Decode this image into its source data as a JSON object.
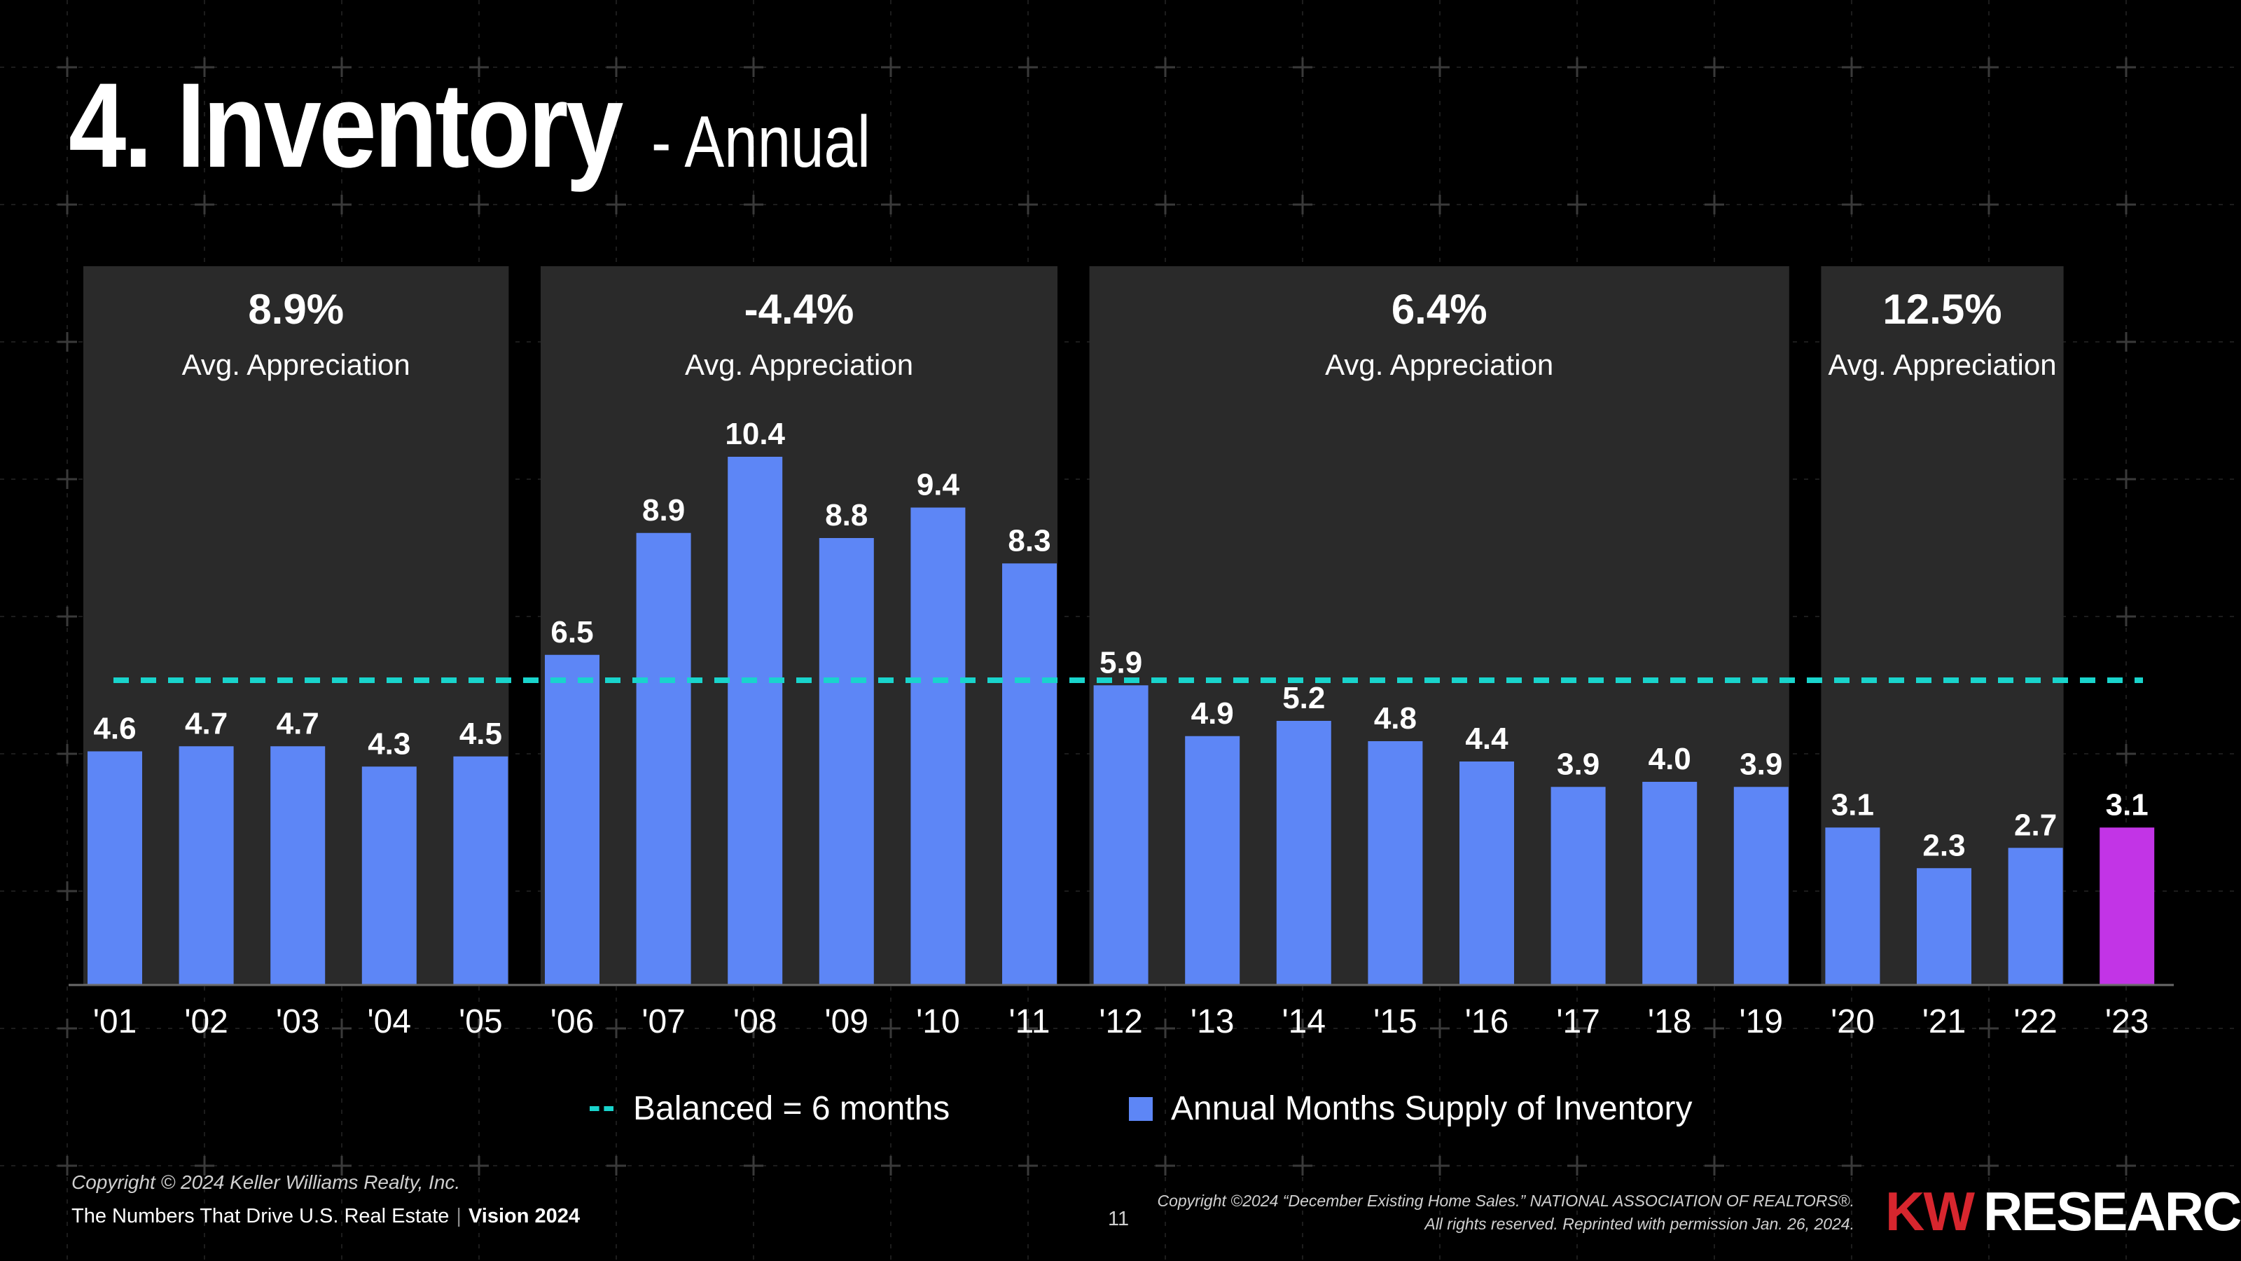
{
  "title": {
    "main": "4. Inventory",
    "sub": "- Annual"
  },
  "colors": {
    "background": "#000000",
    "panel": "#2a2a2a",
    "bar": "#5d86f6",
    "highlight": "#c234e6",
    "balanced_line": "#19d4cc",
    "brand_red": "#d7262e"
  },
  "chart_data": {
    "type": "bar",
    "categories": [
      "'01",
      "'02",
      "'03",
      "'04",
      "'05",
      "'06",
      "'07",
      "'08",
      "'09",
      "'10",
      "'11",
      "'12",
      "'13",
      "'14",
      "'15",
      "'16",
      "'17",
      "'18",
      "'19",
      "'20",
      "'21",
      "'22",
      "'23"
    ],
    "values": [
      4.6,
      4.7,
      4.7,
      4.3,
      4.5,
      6.5,
      8.9,
      10.4,
      8.8,
      9.4,
      8.3,
      5.9,
      4.9,
      5.2,
      4.8,
      4.4,
      3.9,
      4.0,
      3.9,
      3.1,
      2.3,
      2.7,
      3.1
    ],
    "value_labels": [
      "4.6",
      "4.7",
      "4.7",
      "4.3",
      "4.5",
      "6.5",
      "8.9",
      "10.4",
      "8.8",
      "9.4",
      "8.3",
      "5.9",
      "4.9",
      "5.2",
      "4.8",
      "4.4",
      "3.9",
      "4.0",
      "3.9",
      "3.1",
      "2.3",
      "2.7",
      "3.1"
    ],
    "highlight_category": "'23",
    "reference_line": {
      "value": 6,
      "label": "Balanced = 6 months"
    },
    "series_name": "Annual Months Supply of Inventory",
    "ylim": [
      0,
      11
    ],
    "periods": [
      {
        "from": "'01",
        "to": "'05",
        "value": "8.9%",
        "label": "Avg. Appreciation"
      },
      {
        "from": "'06",
        "to": "'11",
        "value": "-4.4%",
        "label": "Avg. Appreciation"
      },
      {
        "from": "'12",
        "to": "'19",
        "value": "6.4%",
        "label": "Avg. Appreciation"
      },
      {
        "from": "'20",
        "to": "'22",
        "value": "12.5%",
        "label": "Avg. Appreciation"
      }
    ]
  },
  "legend": {
    "balanced": "Balanced = 6 months",
    "supply": "Annual Months Supply of Inventory"
  },
  "footer": {
    "copyright": "Copyright © 2024 Keller Williams Realty, Inc.",
    "tagline": "The Numbers That Drive U.S. Real Estate",
    "separator": "|",
    "vision": "Vision 2024",
    "page": "11",
    "source_line1": "Copyright ©2024 “December Existing Home Sales.” NATIONAL ASSOCIATION OF REALTORS®.",
    "source_line2": "All rights reserved. Reprinted with permission Jan. 26, 2024.",
    "brand_kw": "KW",
    "brand_research": "RESEARCH"
  }
}
